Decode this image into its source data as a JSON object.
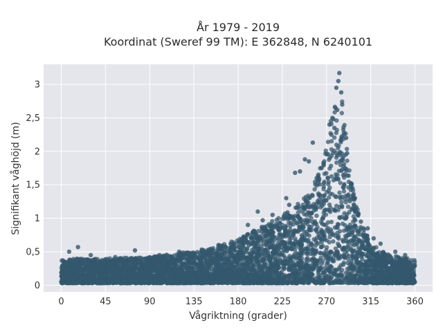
{
  "chart_data": {
    "type": "scatter",
    "title": [
      "År 1979 - 2019",
      "Koordinat (Sweref 99 TM): E 362848, N 6240101"
    ],
    "xlabel": "Vågriktning (grader)",
    "ylabel": "Signifikant våghöjd (m)",
    "xlim": [
      -18,
      378
    ],
    "ylim": [
      -0.1,
      3.3
    ],
    "xticks": [
      0,
      45,
      90,
      135,
      180,
      225,
      270,
      315,
      360
    ],
    "xtick_labels": [
      "0",
      "45",
      "90",
      "135",
      "180",
      "225",
      "270",
      "315",
      "360"
    ],
    "yticks": [
      0,
      0.5,
      1,
      1.5,
      2,
      2.5,
      3
    ],
    "ytick_labels": [
      "0",
      "0,5",
      "1",
      "1,5",
      "2",
      "2,5",
      "3"
    ],
    "grid": true,
    "plot_background": "#e5e5ec",
    "marker_color": "#33586c",
    "envelope": {
      "x": [
        0,
        20,
        45,
        90,
        120,
        150,
        180,
        200,
        220,
        240,
        255,
        265,
        272,
        278,
        282,
        286,
        290,
        296,
        305,
        315,
        330,
        345,
        360
      ],
      "y": [
        0.38,
        0.4,
        0.4,
        0.42,
        0.48,
        0.55,
        0.68,
        0.85,
        1.0,
        1.2,
        1.45,
        1.8,
        2.3,
        2.75,
        3.0,
        2.75,
        2.2,
        1.5,
        0.95,
        0.62,
        0.48,
        0.42,
        0.38
      ]
    },
    "points": [
      [
        17,
        0.57
      ],
      [
        8,
        0.5
      ],
      [
        75,
        0.52
      ],
      [
        200,
        1.1
      ],
      [
        205,
        0.97
      ],
      [
        238,
        1.68
      ],
      [
        243,
        1.7
      ],
      [
        248,
        1.88
      ],
      [
        256,
        2.13
      ],
      [
        252,
        1.85
      ],
      [
        273,
        2.4
      ],
      [
        276,
        2.5
      ],
      [
        279,
        2.65
      ],
      [
        280,
        2.95
      ],
      [
        283,
        3.17
      ],
      [
        282,
        3.05
      ],
      [
        285,
        2.88
      ],
      [
        286,
        2.7
      ],
      [
        281,
        2.62
      ],
      [
        278,
        2.35
      ],
      [
        229,
        1.3
      ],
      [
        232,
        1.2
      ],
      [
        312,
        0.85
      ],
      [
        318,
        0.7
      ],
      [
        325,
        0.62
      ],
      [
        340,
        0.5
      ],
      [
        350,
        0.45
      ],
      [
        120,
        0.5
      ],
      [
        160,
        0.6
      ],
      [
        190,
        0.9
      ],
      [
        215,
        1.05
      ],
      [
        260,
        1.6
      ],
      [
        265,
        1.75
      ],
      [
        290,
        2.2
      ],
      [
        295,
        1.5
      ],
      [
        300,
        1.1
      ],
      [
        305,
        0.95
      ],
      [
        100,
        0.45
      ],
      [
        55,
        0.42
      ],
      [
        30,
        0.45
      ],
      [
        0,
        0.05
      ],
      [
        60,
        0.03
      ],
      [
        357,
        0.08
      ]
    ]
  }
}
